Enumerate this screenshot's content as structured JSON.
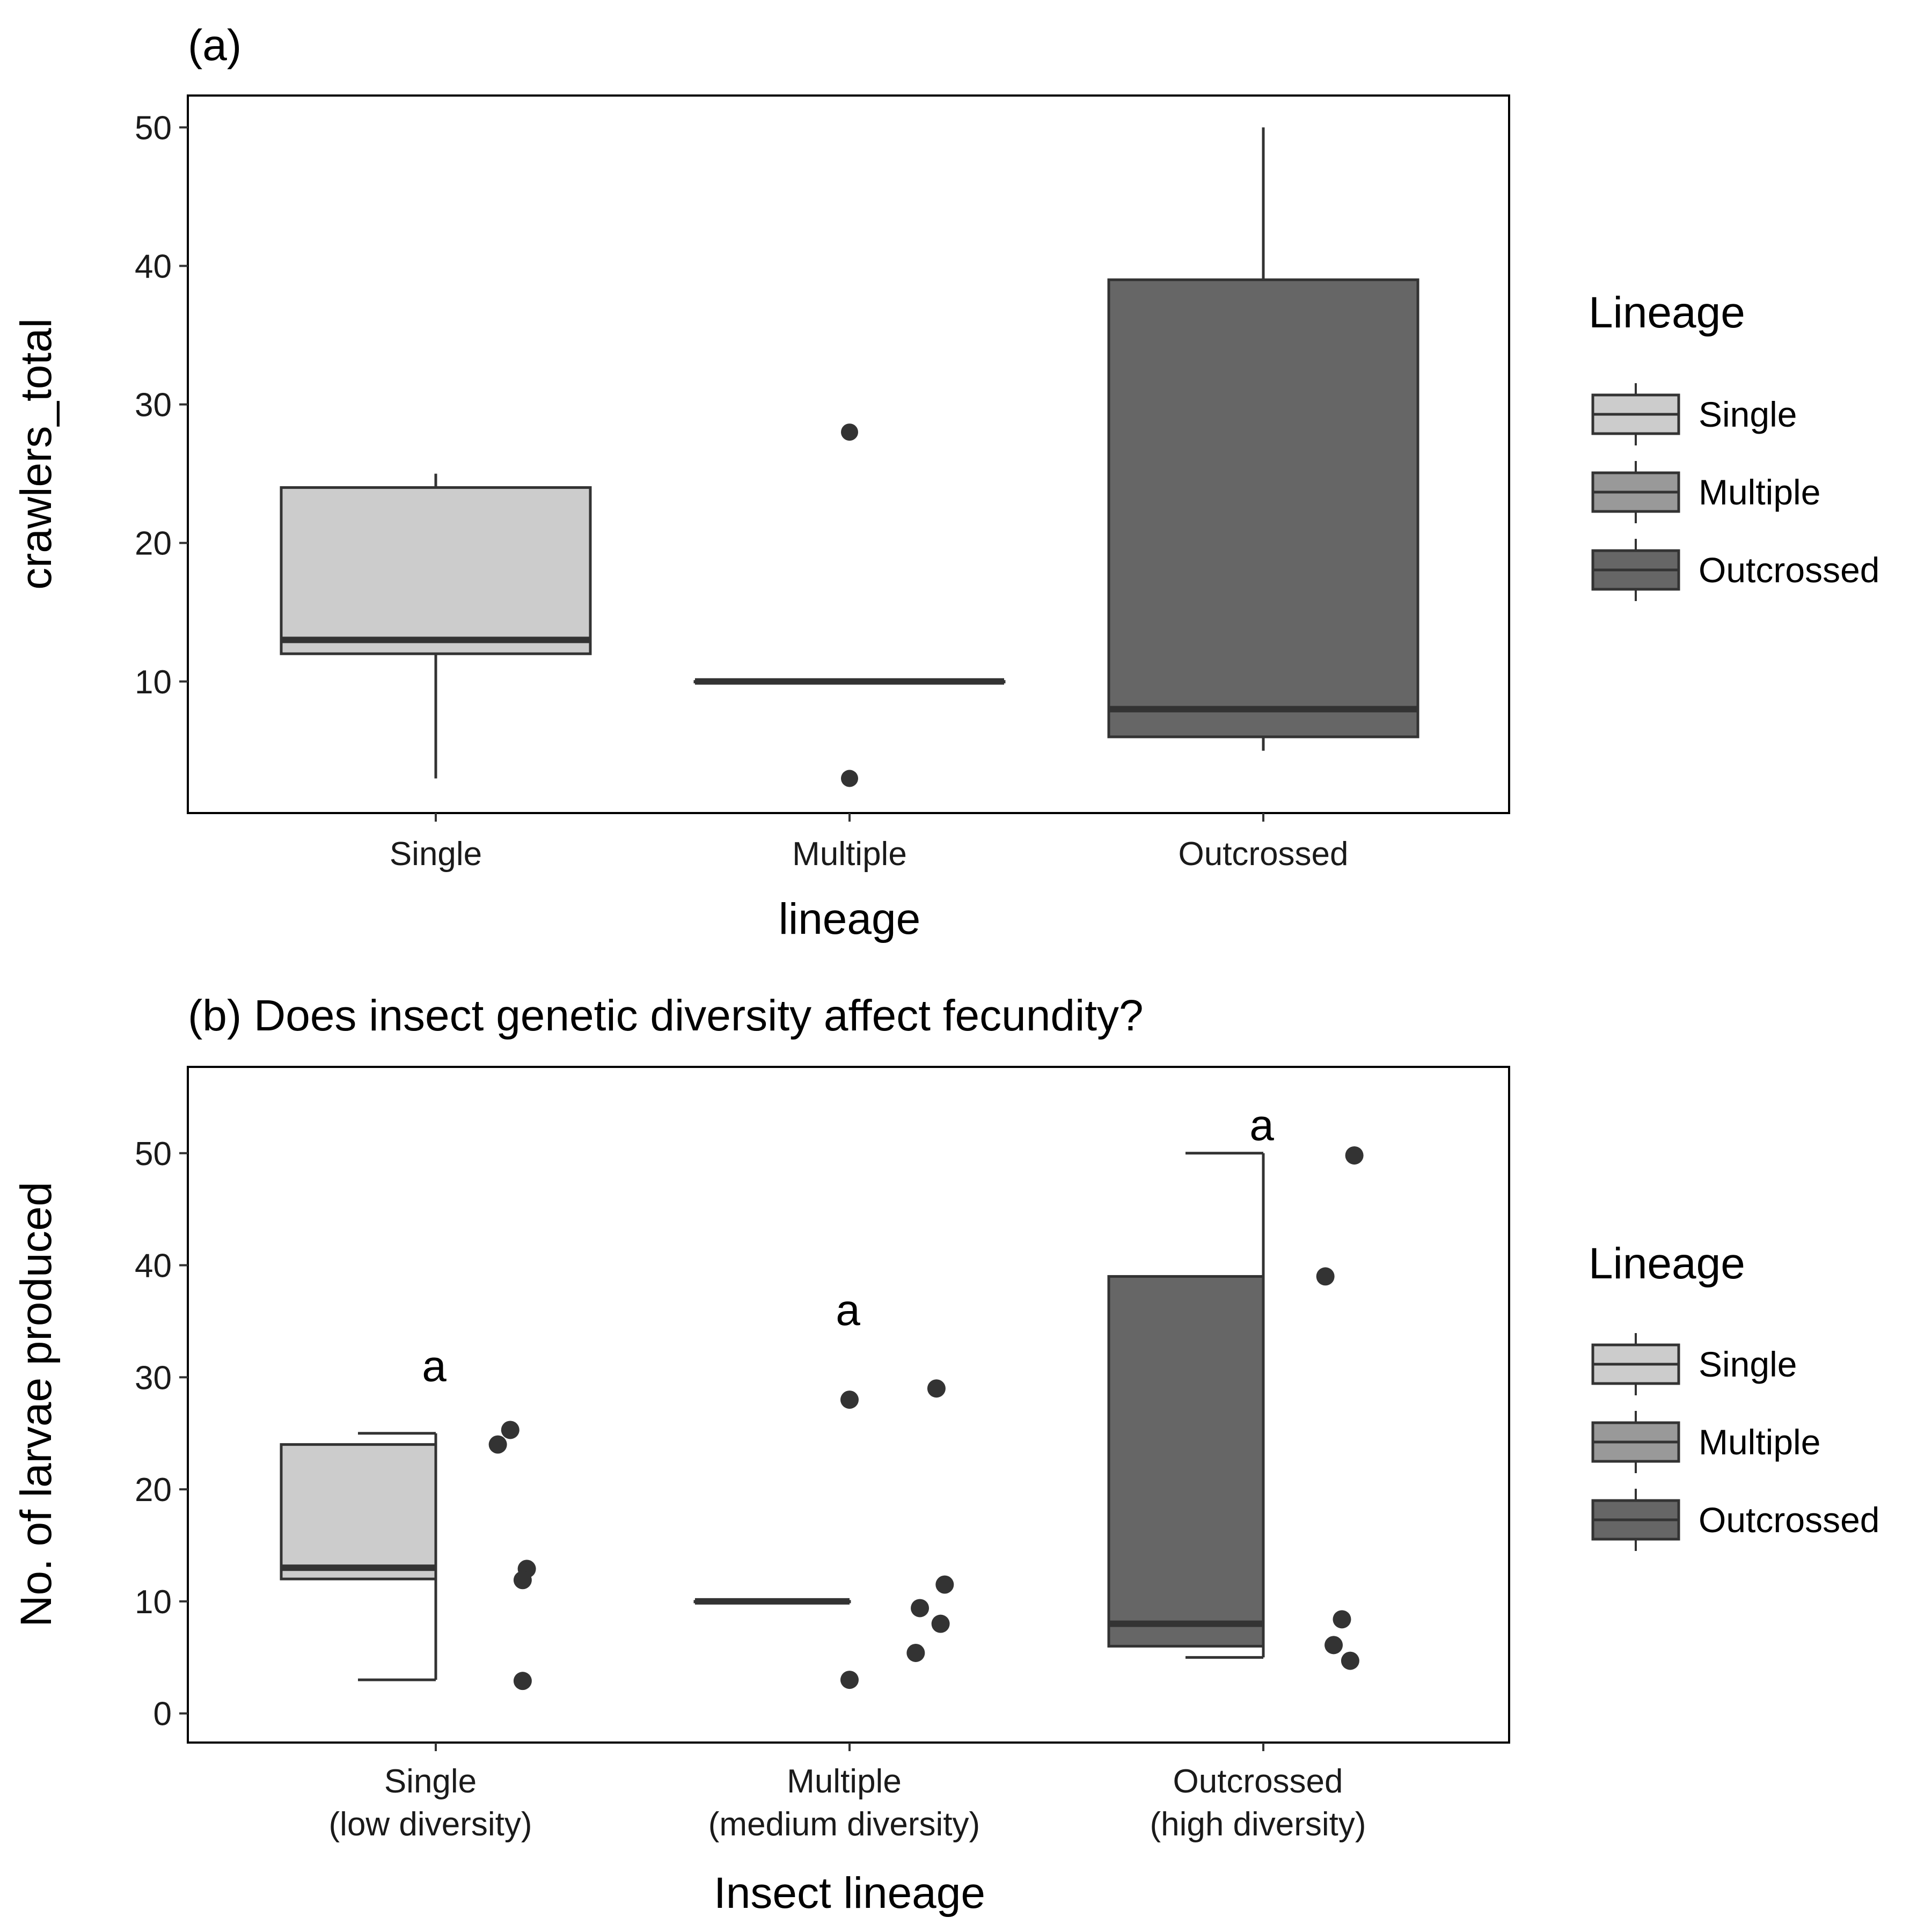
{
  "chart_data": [
    {
      "type": "boxplot",
      "title": "(a)",
      "xlabel": "lineage",
      "ylabel": "crawlers_total",
      "ylim": [
        0.5,
        52.3
      ],
      "yticks": [
        10,
        20,
        30,
        40,
        50
      ],
      "grid": false,
      "categories": [
        "Single",
        "Multiple",
        "Outcrossed"
      ],
      "boxes": [
        {
          "category": "Single",
          "lower_whisker": 3,
          "q1": 12,
          "median": 13,
          "q3": 24,
          "upper_whisker": 25,
          "outliers": [],
          "fill": "#cccccc"
        },
        {
          "category": "Multiple",
          "lower_whisker": 10,
          "q1": 10,
          "median": 10,
          "q3": 10,
          "upper_whisker": 10,
          "outliers": [
            28,
            3
          ],
          "fill": "#999999"
        },
        {
          "category": "Outcrossed",
          "lower_whisker": 5,
          "q1": 6,
          "median": 8,
          "q3": 39,
          "upper_whisker": 50,
          "outliers": [],
          "fill": "#666666"
        }
      ],
      "legend": {
        "title": "Lineage",
        "position": "right",
        "entries": [
          "Single",
          "Multiple",
          "Outcrossed"
        ]
      }
    },
    {
      "type": "boxplot",
      "title": "(b) Does insect genetic diversity affect fecundity?",
      "xlabel": "Insect lineage",
      "ylabel": "No. of larvae produced",
      "ylim": [
        -2.6,
        57.7
      ],
      "yticks": [
        0,
        10,
        20,
        30,
        40,
        50
      ],
      "grid": false,
      "categories": [
        "Single",
        "Multiple",
        "Outcrossed"
      ],
      "tick_labels": [
        [
          "Single",
          "(low diversity)"
        ],
        [
          "Multiple",
          "(medium diversity)"
        ],
        [
          "Outcrossed",
          "(high diversity)"
        ]
      ],
      "boxes": [
        {
          "category": "Single",
          "lower_whisker": 3,
          "q1": 12,
          "median": 13,
          "q3": 24,
          "upper_whisker": 25,
          "fill": "#cccccc",
          "letter": "a"
        },
        {
          "category": "Multiple",
          "lower_whisker": 10,
          "q1": 10,
          "median": 10,
          "q3": 10,
          "upper_whisker": 10,
          "fill": "#999999",
          "letter": "a"
        },
        {
          "category": "Outcrossed",
          "lower_whisker": 5,
          "q1": 6,
          "median": 8,
          "q3": 39,
          "upper_whisker": 50,
          "fill": "#666666",
          "letter": "a"
        }
      ],
      "letter_y": [
        31,
        36,
        52.5
      ],
      "raw_points": [
        {
          "category": "Single",
          "dx": 0.15,
          "y": 24.0
        },
        {
          "category": "Single",
          "dx": 0.18,
          "y": 25.3
        },
        {
          "category": "Single",
          "dx": 0.22,
          "y": 12.9
        },
        {
          "category": "Single",
          "dx": 0.21,
          "y": 11.9
        },
        {
          "category": "Single",
          "dx": 0.21,
          "y": 2.9
        },
        {
          "category": "Multiple",
          "dx": 0.0,
          "y": 28.0
        },
        {
          "category": "Multiple",
          "dx": 0.0,
          "y": 3.0
        },
        {
          "category": "Multiple",
          "dx": 0.21,
          "y": 29.0
        },
        {
          "category": "Multiple",
          "dx": 0.23,
          "y": 11.5
        },
        {
          "category": "Multiple",
          "dx": 0.17,
          "y": 9.4
        },
        {
          "category": "Multiple",
          "dx": 0.22,
          "y": 8.0
        },
        {
          "category": "Multiple",
          "dx": 0.16,
          "y": 5.4
        },
        {
          "category": "Outcrossed",
          "dx": 0.15,
          "y": 39.0
        },
        {
          "category": "Outcrossed",
          "dx": 0.22,
          "y": 49.8
        },
        {
          "category": "Outcrossed",
          "dx": 0.19,
          "y": 8.4
        },
        {
          "category": "Outcrossed",
          "dx": 0.17,
          "y": 6.1
        },
        {
          "category": "Outcrossed",
          "dx": 0.21,
          "y": 4.7
        }
      ],
      "legend": {
        "title": "Lineage",
        "position": "right",
        "entries": [
          "Single",
          "Multiple",
          "Outcrossed"
        ]
      }
    }
  ]
}
